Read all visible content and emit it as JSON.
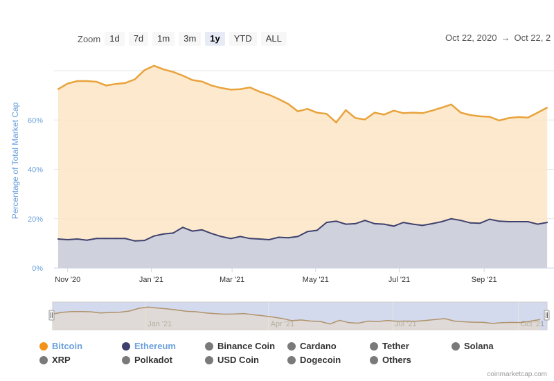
{
  "zoom": {
    "label": "Zoom",
    "buttons": [
      "1d",
      "7d",
      "1m",
      "3m",
      "1y",
      "YTD",
      "ALL"
    ],
    "active": "1y"
  },
  "range": {
    "from": "Oct 22, 2020",
    "arrow": "→",
    "to": "Oct 22, 2"
  },
  "credits": "coinmarketcap.com",
  "chart_data": {
    "type": "area",
    "ylabel": "Percentage of Total Market Cap",
    "y_ticks": [
      "0%",
      "20%",
      "40%",
      "60%"
    ],
    "ylim": [
      0,
      80
    ],
    "x_ticks": [
      "Nov '20",
      "Jan '21",
      "Mar '21",
      "May '21",
      "Jul '21",
      "Sep '21"
    ],
    "x_tick_dates": [
      "2020-11-01",
      "2021-01-01",
      "2021-03-01",
      "2021-05-01",
      "2021-07-01",
      "2021-09-01"
    ],
    "navigator_ticks": [
      "Jan '21",
      "Apr '21",
      "Jul '21",
      "Oct '21"
    ],
    "navigator_tick_dates": [
      "2021-01-01",
      "2021-04-01",
      "2021-07-01",
      "2021-10-01"
    ],
    "x_range": [
      "2020-10-22",
      "2021-10-22"
    ],
    "grid": true,
    "legend_position": "bottom",
    "x": [
      "2020-10-25",
      "2020-11-01",
      "2020-11-08",
      "2020-11-15",
      "2020-11-22",
      "2020-11-29",
      "2020-12-06",
      "2020-12-13",
      "2020-12-20",
      "2020-12-27",
      "2021-01-03",
      "2021-01-10",
      "2021-01-17",
      "2021-01-24",
      "2021-01-31",
      "2021-02-07",
      "2021-02-14",
      "2021-02-21",
      "2021-02-28",
      "2021-03-07",
      "2021-03-14",
      "2021-03-21",
      "2021-03-28",
      "2021-04-04",
      "2021-04-11",
      "2021-04-18",
      "2021-04-25",
      "2021-05-02",
      "2021-05-09",
      "2021-05-16",
      "2021-05-23",
      "2021-05-30",
      "2021-06-06",
      "2021-06-13",
      "2021-06-20",
      "2021-06-27",
      "2021-07-04",
      "2021-07-11",
      "2021-07-18",
      "2021-07-25",
      "2021-08-01",
      "2021-08-08",
      "2021-08-15",
      "2021-08-22",
      "2021-08-29",
      "2021-09-05",
      "2021-09-12",
      "2021-09-19",
      "2021-09-26",
      "2021-10-03",
      "2021-10-10",
      "2021-10-17"
    ],
    "series": [
      {
        "name": "Bitcoin",
        "color": "#e8a33c",
        "values": [
          72.5,
          74.8,
          75.8,
          75.8,
          75.5,
          74.0,
          74.6,
          75.0,
          76.5,
          80.2,
          82.0,
          80.5,
          79.5,
          78.0,
          76.2,
          75.6,
          74.0,
          73.0,
          72.3,
          72.5,
          73.2,
          71.5,
          70.2,
          68.5,
          66.5,
          63.5,
          64.5,
          63.0,
          62.5,
          59.0,
          64.0,
          60.8,
          60.2,
          63.0,
          62.2,
          63.8,
          62.8,
          63.0,
          62.8,
          63.8,
          65.0,
          66.3,
          63.0,
          62.0,
          61.5,
          61.3,
          59.8,
          60.8,
          61.2,
          61.0,
          63.0,
          65.0
        ]
      },
      {
        "name": "Ethereum",
        "color": "#3e416e",
        "values": [
          11.8,
          11.5,
          11.8,
          11.3,
          12.0,
          12.0,
          12.0,
          12.0,
          11.0,
          11.2,
          13.0,
          13.8,
          14.2,
          16.5,
          15.0,
          15.5,
          14.0,
          12.8,
          12.0,
          12.8,
          12.0,
          11.8,
          11.5,
          12.5,
          12.3,
          12.8,
          14.8,
          15.3,
          18.5,
          19.0,
          17.8,
          18.0,
          19.3,
          18.0,
          17.8,
          17.0,
          18.5,
          17.8,
          17.3,
          18.0,
          18.8,
          20.0,
          19.3,
          18.3,
          18.2,
          19.8,
          19.0,
          18.8,
          18.8,
          18.8,
          17.8,
          18.5
        ]
      }
    ],
    "legend": [
      {
        "name": "Bitcoin",
        "color": "#f2931b",
        "visible": true
      },
      {
        "name": "Ethereum",
        "color": "#3e416e",
        "visible": true
      },
      {
        "name": "Binance Coin",
        "color": "#7a7a7a",
        "visible": false
      },
      {
        "name": "Cardano",
        "color": "#7a7a7a",
        "visible": false
      },
      {
        "name": "Tether",
        "color": "#7a7a7a",
        "visible": false
      },
      {
        "name": "Solana",
        "color": "#7a7a7a",
        "visible": false
      },
      {
        "name": "XRP",
        "color": "#7a7a7a",
        "visible": false
      },
      {
        "name": "Polkadot",
        "color": "#7a7a7a",
        "visible": false
      },
      {
        "name": "USD Coin",
        "color": "#7a7a7a",
        "visible": false
      },
      {
        "name": "Dogecoin",
        "color": "#7a7a7a",
        "visible": false
      },
      {
        "name": "Others",
        "color": "#7a7a7a",
        "visible": false
      }
    ]
  }
}
